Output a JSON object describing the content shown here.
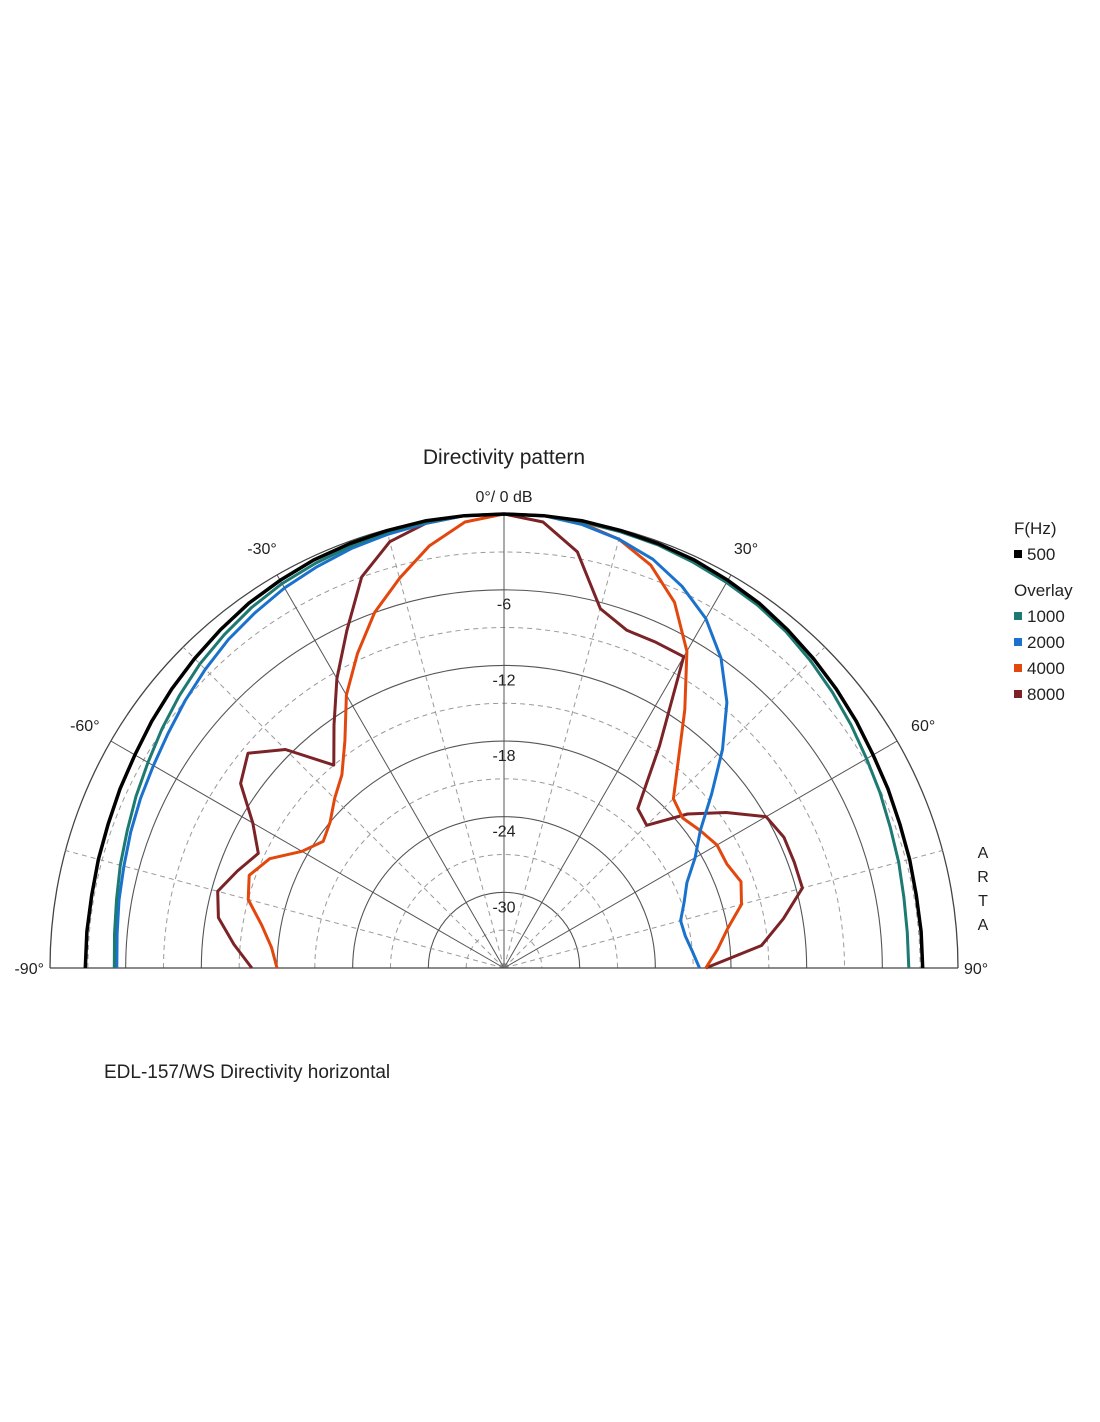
{
  "chart_data": {
    "type": "polar-line",
    "title": "Directivity pattern",
    "top_label": "0°/ 0 dB",
    "angle_range": [
      -90,
      90
    ],
    "angle_ticks": [
      {
        "angle": -90,
        "label": "-90°"
      },
      {
        "angle": -60,
        "label": "-60°"
      },
      {
        "angle": -30,
        "label": "-30°"
      },
      {
        "angle": 30,
        "label": "30°"
      },
      {
        "angle": 60,
        "label": "60°"
      },
      {
        "angle": 90,
        "label": "90°"
      }
    ],
    "db_range": [
      -36,
      0
    ],
    "db_ticks": [
      {
        "db": -6,
        "label": "-6"
      },
      {
        "db": -12,
        "label": "-12"
      },
      {
        "db": -18,
        "label": "-18"
      },
      {
        "db": -24,
        "label": "-24"
      },
      {
        "db": -30,
        "label": "-30"
      }
    ],
    "grid": true,
    "legend": {
      "header": "F(Hz)",
      "overlay_header": "Overlay",
      "position": "right"
    },
    "brand_label": "ARTA",
    "angles": [
      -90,
      -85,
      -80,
      -75,
      -70,
      -65,
      -60,
      -55,
      -50,
      -45,
      -40,
      -35,
      -30,
      -25,
      -20,
      -15,
      -10,
      -5,
      0,
      5,
      10,
      15,
      20,
      25,
      30,
      35,
      40,
      45,
      50,
      55,
      60,
      65,
      70,
      75,
      80,
      85,
      90
    ],
    "series": [
      {
        "name": "500",
        "group": "main",
        "color": "#000000",
        "values": [
          -2.8,
          -2.8,
          -2.8,
          -2.7,
          -2.6,
          -2.4,
          -2.2,
          -1.9,
          -1.6,
          -1.3,
          -1.0,
          -0.7,
          -0.5,
          -0.3,
          -0.2,
          -0.1,
          0,
          0,
          0,
          0,
          0,
          -0.1,
          -0.2,
          -0.3,
          -0.5,
          -0.7,
          -1.0,
          -1.3,
          -1.6,
          -1.9,
          -2.2,
          -2.4,
          -2.6,
          -2.7,
          -2.8,
          -2.8,
          -2.8
        ]
      },
      {
        "name": "1000",
        "group": "overlay",
        "color": "#1d7a72",
        "values": [
          -5.1,
          -5.0,
          -4.8,
          -4.5,
          -4.2,
          -3.8,
          -3.4,
          -2.9,
          -2.4,
          -1.9,
          -1.5,
          -1.1,
          -0.8,
          -0.6,
          -0.4,
          -0.2,
          -0.1,
          0,
          0,
          0,
          -0.1,
          -0.2,
          -0.3,
          -0.5,
          -0.7,
          -0.9,
          -1.2,
          -1.6,
          -2.0,
          -2.4,
          -2.8,
          -3.1,
          -3.4,
          -3.6,
          -3.8,
          -3.9,
          -3.9
        ]
      },
      {
        "name": "2000",
        "group": "overlay",
        "color": "#1a72cc",
        "values": [
          -5.3,
          -5.2,
          -5.0,
          -4.8,
          -4.5,
          -4.2,
          -3.9,
          -3.5,
          -3.0,
          -2.5,
          -2.0,
          -1.6,
          -1.2,
          -0.9,
          -0.6,
          -0.4,
          -0.2,
          0,
          0,
          0,
          -0.3,
          -0.8,
          -1.5,
          -2.6,
          -4.0,
          -6.0,
          -8.5,
          -11.5,
          -14.5,
          -17.0,
          -18.5,
          -20.0,
          -20.8,
          -21.5,
          -21.4,
          -21.0,
          -20.5
        ]
      },
      {
        "name": "4000",
        "group": "overlay",
        "color": "#e2470e",
        "values": [
          -18.0,
          -17.5,
          -16.5,
          -15.0,
          -14.5,
          -15.5,
          -17.5,
          -18.5,
          -18.0,
          -17.0,
          -16.0,
          -14.0,
          -11.0,
          -8.5,
          -6.0,
          -4.0,
          -2.0,
          -0.5,
          0,
          0,
          -0.2,
          -0.8,
          -2.0,
          -4.0,
          -7.0,
          -11.0,
          -14.5,
          -17.0,
          -17.5,
          -17.0,
          -16.5,
          -16.5,
          -16.0,
          -16.5,
          -18.0,
          -19.0,
          -20.0
        ]
      },
      {
        "name": "8000",
        "group": "overlay",
        "color": "#7b2326",
        "values": [
          -16.0,
          -14.5,
          -13.0,
          -12.5,
          -13.5,
          -14.5,
          -13.0,
          -10.5,
          -9.5,
          -11.5,
          -15.0,
          -12.5,
          -9.5,
          -6.5,
          -3.0,
          -1.0,
          -0.2,
          0,
          0,
          -0.5,
          -2.5,
          -6.5,
          -7.5,
          -7.5,
          -7.5,
          -14.5,
          -19.5,
          -20.0,
          -17.0,
          -14.5,
          -12.0,
          -11.5,
          -11.5,
          -11.5,
          -13.5,
          -15.5,
          -20.0
        ]
      }
    ]
  }
}
